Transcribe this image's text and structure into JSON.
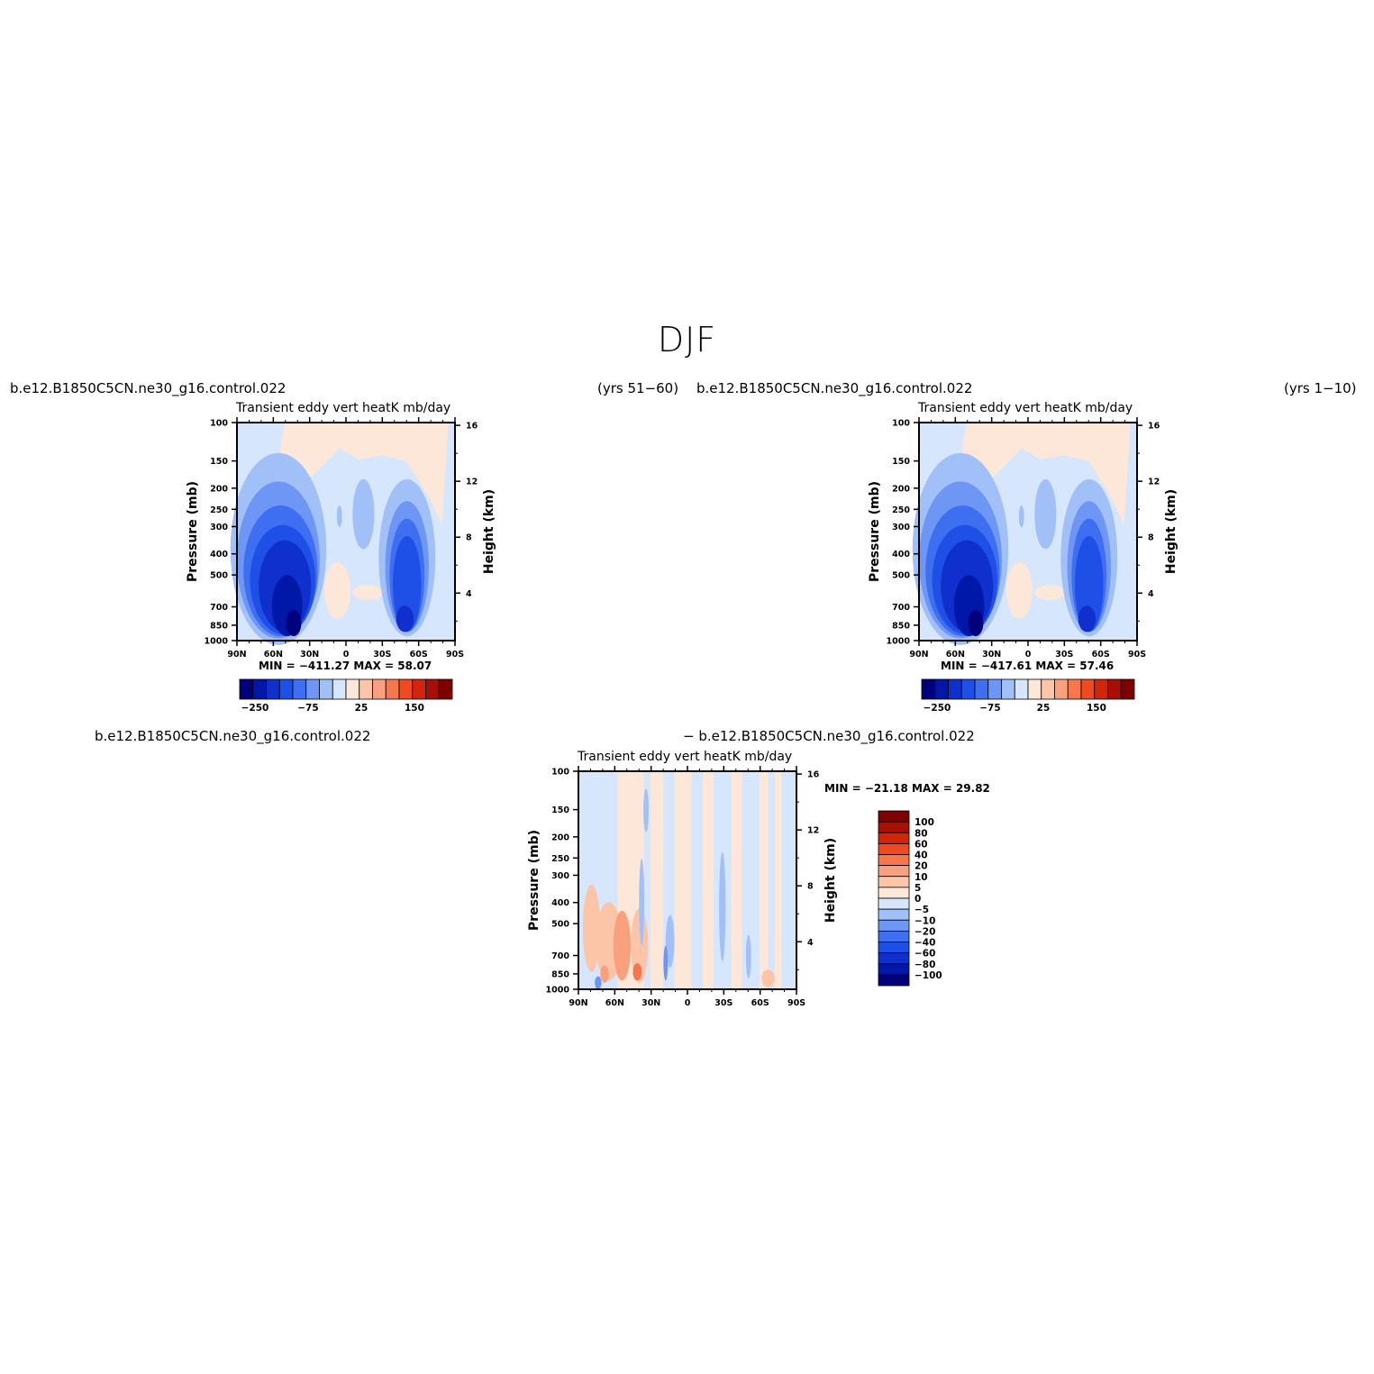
{
  "figure": {
    "title": "DJF"
  },
  "chart_data": [
    {
      "type": "heatmap",
      "case_name": "b.e12.B1850C5CN.ne30_g16.control.022",
      "period": "(yrs 51−60)",
      "title": "Transient  eddy  vert  heatK  mb/day",
      "ylabel": "Pressure  (mb)",
      "ylabel_right": "Height  (km)",
      "x_ticks": [
        "90N",
        "60N",
        "30N",
        "0",
        "30S",
        "60S",
        "90S"
      ],
      "y_ticks": [
        "100",
        "150",
        "200",
        "250",
        "300",
        "400",
        "500",
        "700",
        "850",
        "1000"
      ],
      "y_right_ticks": [
        "16",
        "12",
        "8",
        "4"
      ],
      "min_max_text": "MIN = −411.27   MAX =   58.07",
      "min": -411.27,
      "max": 58.07,
      "colorbar_labels": [
        "−250",
        "−75",
        "25",
        "150"
      ],
      "colorbar_orientation": "horizontal"
    },
    {
      "type": "heatmap",
      "case_name": "b.e12.B1850C5CN.ne30_g16.control.022",
      "period": "(yrs 1−10)",
      "title": "Transient  eddy  vert  heatK  mb/day",
      "ylabel": "Pressure  (mb)",
      "ylabel_right": "Height  (km)",
      "x_ticks": [
        "90N",
        "60N",
        "30N",
        "0",
        "30S",
        "60S",
        "90S"
      ],
      "y_ticks": [
        "100",
        "150",
        "200",
        "250",
        "300",
        "400",
        "500",
        "700",
        "850",
        "1000"
      ],
      "y_right_ticks": [
        "16",
        "12",
        "8",
        "4"
      ],
      "min_max_text": "MIN = −417.61   MAX =   57.46",
      "min": -417.61,
      "max": 57.46,
      "colorbar_labels": [
        "−250",
        "−75",
        "25",
        "150"
      ],
      "colorbar_orientation": "horizontal"
    },
    {
      "type": "heatmap",
      "case_name_left": "b.e12.B1850C5CN.ne30_g16.control.022",
      "case_name_right": "− b.e12.B1850C5CN.ne30_g16.control.022",
      "title": "Transient  eddy  vert  heatK  mb/day",
      "ylabel": "Pressure  (mb)",
      "ylabel_right": "Height  (km)",
      "x_ticks": [
        "90N",
        "60N",
        "30N",
        "0",
        "30S",
        "60S",
        "90S"
      ],
      "y_ticks": [
        "100",
        "150",
        "200",
        "250",
        "300",
        "400",
        "500",
        "700",
        "850",
        "1000"
      ],
      "y_right_ticks": [
        "16",
        "12",
        "8",
        "4"
      ],
      "min_max_text": "MIN = −21.18   MAX =   29.82",
      "min": -21.18,
      "max": 29.82,
      "colorbar_labels": [
        "100",
        "80",
        "60",
        "40",
        "20",
        "10",
        "5",
        "0",
        "−5",
        "−10",
        "−20",
        "−40",
        "−60",
        "−80",
        "−100"
      ],
      "colorbar_orientation": "vertical"
    }
  ],
  "colors": {
    "scale": [
      "#00007f",
      "#0018a8",
      "#0f30cc",
      "#1e4fe6",
      "#3e6ff0",
      "#6e97f5",
      "#a2c0f8",
      "#d6e6fc",
      "#fde7d8",
      "#fcc5a8",
      "#fba07c",
      "#f8754d",
      "#f04a22",
      "#d1260c",
      "#a50f06",
      "#7f0000"
    ]
  }
}
